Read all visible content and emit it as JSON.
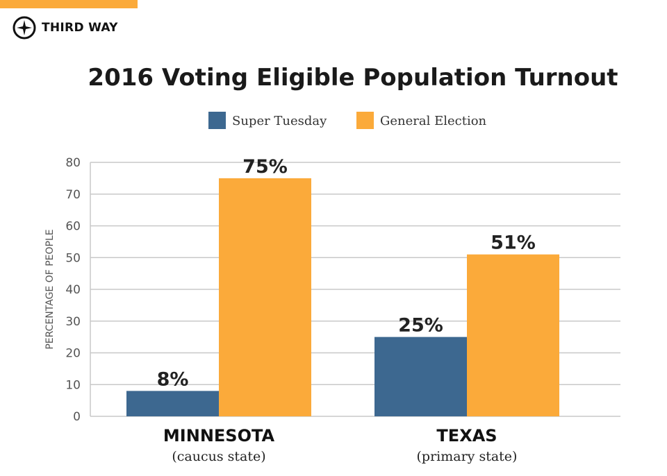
{
  "brand": {
    "name": "THIRD WAY",
    "accent": "#fbaa3a"
  },
  "chart_data": {
    "type": "bar",
    "title": "2016 Voting Eligible Population Turnout",
    "ylabel": "PERCENTAGE OF PEOPLE",
    "xlabel": "",
    "ylim": [
      0,
      80
    ],
    "yticks": [
      0,
      10,
      20,
      30,
      40,
      50,
      60,
      70,
      80
    ],
    "grid": true,
    "legend_position": "top-center",
    "categories": [
      "MINNESOTA",
      "TEXAS"
    ],
    "category_sublabels": [
      "(caucus state)",
      "(primary state)"
    ],
    "series": [
      {
        "name": "Super Tuesday",
        "color": "#3d6890",
        "values": [
          8,
          25
        ],
        "labels": [
          "8%",
          "25%"
        ]
      },
      {
        "name": "General Election",
        "color": "#fbaa3a",
        "values": [
          75,
          51
        ],
        "labels": [
          "75%",
          "51%"
        ]
      }
    ]
  }
}
